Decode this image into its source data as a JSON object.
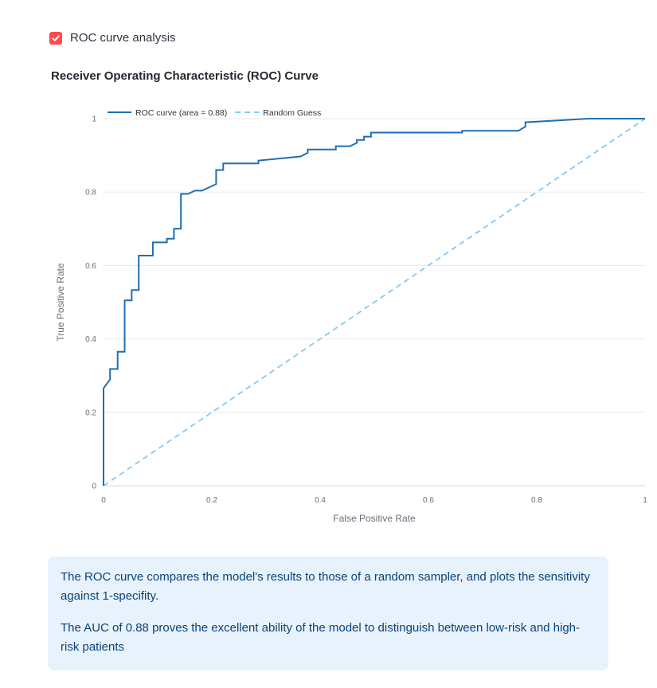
{
  "checkbox": {
    "label": "ROC curve analysis",
    "checked": true,
    "color": "#ff4b4b"
  },
  "chart_title": "Receiver Operating Characteristic (ROC) Curve",
  "info": {
    "paragraph1": "The ROC curve compares the model's results to those of a random sampler, and plots the sensitivity against 1-specifity.",
    "paragraph2": "The AUC of 0.88 proves the excellent ability of the model to distinguish between low-risk and high-risk patients",
    "background": "#e7f2fc",
    "text_color": "#0b4277"
  },
  "chart_data": {
    "type": "line",
    "title": "Receiver Operating Characteristic (ROC) Curve",
    "xlabel": "False Positive Rate",
    "ylabel": "True Positive Rate",
    "xlim": [
      0,
      1
    ],
    "ylim": [
      0,
      1
    ],
    "xticks": [
      0,
      0.2,
      0.4,
      0.6,
      0.8,
      1
    ],
    "xtick_labels": [
      "0",
      "0.2",
      "0.4",
      "0.6",
      "0.8",
      "1"
    ],
    "yticks": [
      0,
      0.2,
      0.4,
      0.6,
      0.8,
      1
    ],
    "ytick_labels": [
      "0",
      "0.2",
      "0.4",
      "0.6",
      "0.8",
      "1"
    ],
    "grid": true,
    "legend_position": "top-left",
    "series": [
      {
        "name": "ROC curve (area = 0.88)",
        "color": "#1f6fb4",
        "dash": "solid",
        "x": [
          0,
          0,
          0.012,
          0.012,
          0.026,
          0.026,
          0.039,
          0.039,
          0.052,
          0.052,
          0.065,
          0.065,
          0.091,
          0.091,
          0.117,
          0.117,
          0.13,
          0.13,
          0.143,
          0.143,
          0.156,
          0.169,
          0.182,
          0.208,
          0.208,
          0.221,
          0.221,
          0.286,
          0.286,
          0.364,
          0.377,
          0.377,
          0.429,
          0.429,
          0.455,
          0.468,
          0.468,
          0.481,
          0.481,
          0.494,
          0.494,
          0.662,
          0.662,
          0.766,
          0.779,
          0.779,
          0.896,
          1
        ],
        "y": [
          0,
          0.265,
          0.29,
          0.318,
          0.318,
          0.365,
          0.365,
          0.505,
          0.505,
          0.533,
          0.533,
          0.627,
          0.627,
          0.663,
          0.663,
          0.673,
          0.673,
          0.7,
          0.7,
          0.795,
          0.795,
          0.804,
          0.804,
          0.822,
          0.86,
          0.86,
          0.878,
          0.878,
          0.886,
          0.897,
          0.907,
          0.916,
          0.916,
          0.925,
          0.925,
          0.934,
          0.942,
          0.942,
          0.951,
          0.951,
          0.962,
          0.962,
          0.967,
          0.967,
          0.978,
          0.99,
          1,
          1
        ]
      },
      {
        "name": "Random Guess",
        "color": "#86c9f0",
        "dash": "dashed",
        "x": [
          0,
          1
        ],
        "y": [
          0,
          1
        ]
      }
    ]
  }
}
